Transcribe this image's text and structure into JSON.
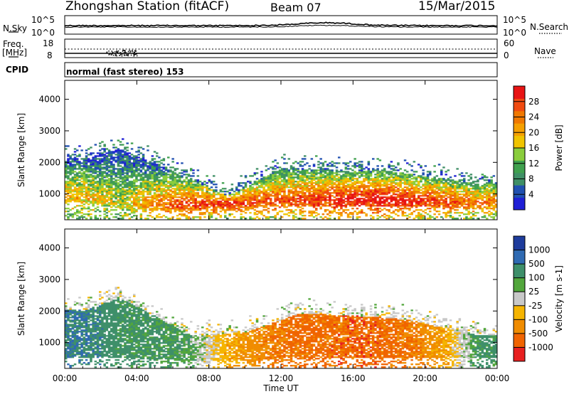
{
  "header": {
    "station": "Zhongshan Station (fitACF)",
    "beam": "Beam 07",
    "date": "15/Mar/2015"
  },
  "noise_panel": {
    "left_label": "N.Sky",
    "right_label": "N.Search",
    "left_ticks": [
      "10^5",
      "10^0"
    ],
    "right_ticks": [
      "10^5",
      "10^0"
    ]
  },
  "freq_panel": {
    "left_label_1": "Freq.",
    "left_label_2": "[MHz]",
    "right_label": "Nave",
    "left_ticks": [
      "18",
      "8"
    ],
    "right_ticks": [
      "60",
      "0"
    ]
  },
  "cpid": {
    "label": "CPID",
    "value": "normal (fast stereo) 153"
  },
  "colors": {
    "power_scale": [
      "#1f1fd6",
      "#2050b0",
      "#3f8f66",
      "#3fa04e",
      "#8acd3c",
      "#f0c400",
      "#f5a000",
      "#f07800",
      "#f04a10",
      "#e81414"
    ],
    "velocity_scale": [
      "#1e3c9c",
      "#2f6ab2",
      "#3e8f6a",
      "#52a63c",
      "#c8c8c8",
      "#f5b400",
      "#f08c00",
      "#f06400",
      "#e82020"
    ]
  },
  "chart_data": [
    {
      "type": "heatmap",
      "title": "Power",
      "ylabel": "Slant Range [km]",
      "xlabel": "",
      "x_ticks": [
        "00:00",
        "04:00",
        "08:00",
        "12:00",
        "16:00",
        "20:00",
        "00:00"
      ],
      "y_ticks": [
        "1000",
        "2000",
        "3000",
        "4000"
      ],
      "ylim": [
        180,
        4600
      ],
      "colorbar": {
        "label": "Power [dB]",
        "ticks": [
          "4",
          "8",
          "12",
          "16",
          "20",
          "24",
          "28"
        ]
      },
      "description": "Backscatter power vs UT hour and slant range; strongest returns (24-30 dB) along 500-1000 km band from 06:00 to 20:00",
      "band_samples": [
        {
          "hour": 1,
          "range_low": 700,
          "range_high": 2100,
          "power_peak": 20
        },
        {
          "hour": 3,
          "range_low": 500,
          "range_high": 2400,
          "power_peak": 16
        },
        {
          "hour": 6,
          "range_low": 450,
          "range_high": 1700,
          "power_peak": 26
        },
        {
          "hour": 9,
          "range_low": 450,
          "range_high": 900,
          "power_peak": 28
        },
        {
          "hour": 12,
          "range_low": 600,
          "range_high": 1800,
          "power_peak": 26
        },
        {
          "hour": 16,
          "range_low": 600,
          "range_high": 1700,
          "power_peak": 30
        },
        {
          "hour": 18,
          "range_low": 600,
          "range_high": 1700,
          "power_peak": 30
        },
        {
          "hour": 23,
          "range_low": 500,
          "range_high": 1300,
          "power_peak": 24
        }
      ]
    },
    {
      "type": "heatmap",
      "title": "Velocity",
      "ylabel": "Slant Range [km]",
      "xlabel": "Time UT",
      "x_ticks": [
        "00:00",
        "04:00",
        "08:00",
        "12:00",
        "16:00",
        "20:00",
        "00:00"
      ],
      "y_ticks": [
        "1000",
        "2000",
        "3000",
        "4000"
      ],
      "ylim": [
        180,
        4600
      ],
      "colorbar": {
        "label": "Velocity [m s-1]",
        "ticks": [
          "1000",
          "500",
          "100",
          "25",
          "-25",
          "-100",
          "-500",
          "-1000"
        ]
      },
      "description": "Line-of-sight Doppler velocity; positive (green/blue) near 00:00-08:00, negative (orange/red) 10:00-20:00",
      "band_samples": [
        {
          "hour": 1,
          "range_low": 500,
          "range_high": 2000,
          "velocity": 300
        },
        {
          "hour": 3,
          "range_low": 500,
          "range_high": 2400,
          "velocity": 100
        },
        {
          "hour": 7,
          "range_low": 400,
          "range_high": 1200,
          "velocity": 50
        },
        {
          "hour": 10,
          "range_low": 400,
          "range_high": 1300,
          "velocity": -150
        },
        {
          "hour": 13,
          "range_low": 500,
          "range_high": 1900,
          "velocity": -400
        },
        {
          "hour": 17,
          "range_low": 500,
          "range_high": 1800,
          "velocity": -500
        },
        {
          "hour": 19,
          "range_low": 500,
          "range_high": 1700,
          "velocity": -300
        },
        {
          "hour": 23,
          "range_low": 500,
          "range_high": 1200,
          "velocity": 100
        }
      ]
    }
  ]
}
